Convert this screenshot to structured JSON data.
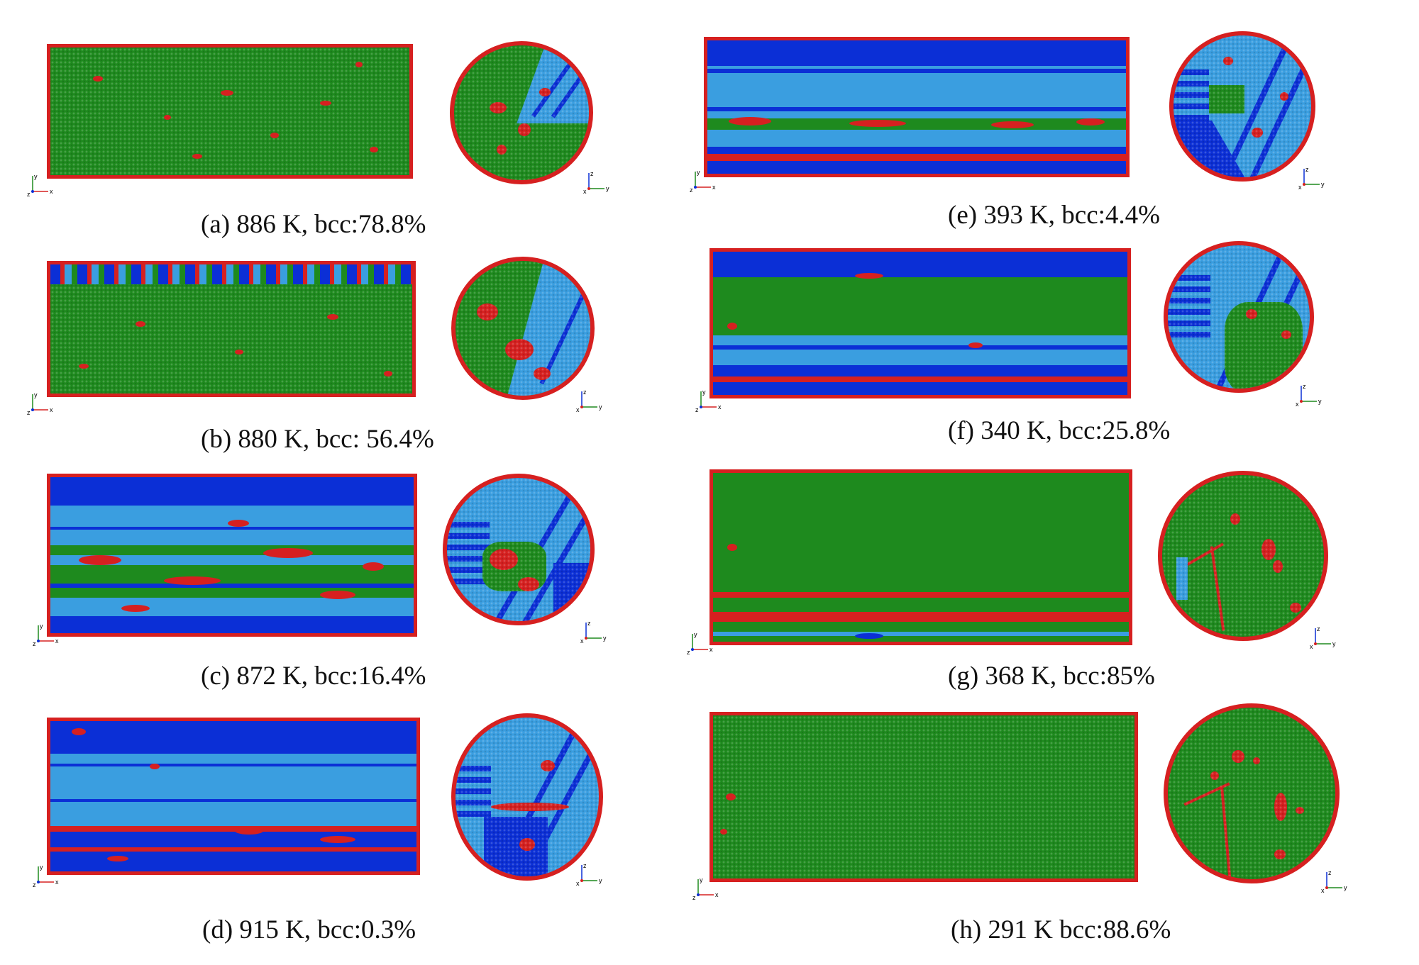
{
  "colors": {
    "bcc": "#1e8a1e",
    "fcc": "#0b2fd6",
    "hcp": "#3a9ee0",
    "other": "#d62020"
  },
  "axis_labels": {
    "y": "y",
    "z": "z",
    "x": "x"
  },
  "panels": [
    {
      "id": "a",
      "caption": "(a) 886 K, bcc:78.8%"
    },
    {
      "id": "b",
      "caption": "(b) 880 K, bcc: 56.4%"
    },
    {
      "id": "c",
      "caption": "(c) 872 K, bcc:16.4%"
    },
    {
      "id": "d",
      "caption": "(d) 915 K, bcc:0.3%"
    },
    {
      "id": "e",
      "caption": "(e) 393 K, bcc:4.4%"
    },
    {
      "id": "f",
      "caption": "(f) 340 K, bcc:25.8%"
    },
    {
      "id": "g",
      "caption": "(g) 368 K, bcc:85%"
    },
    {
      "id": "h",
      "caption": "(h) 291 K bcc:88.6%"
    }
  ]
}
